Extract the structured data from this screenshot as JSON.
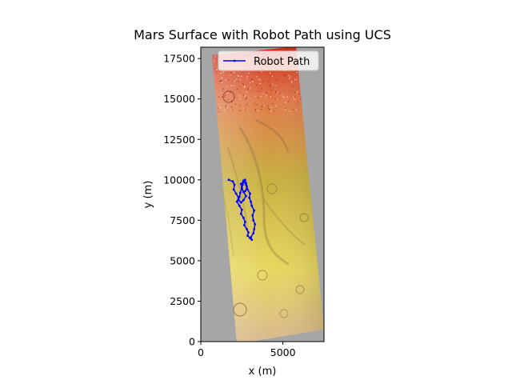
{
  "chart_data": {
    "type": "line",
    "title": "Mars Surface with Robot Path using UCS",
    "xlabel": "x (m)",
    "ylabel": "y (m)",
    "xlim": [
      0,
      7500
    ],
    "ylim": [
      0,
      18200
    ],
    "x_ticks": [
      0,
      5000
    ],
    "x_tick_labels": [
      "0",
      "5000"
    ],
    "y_ticks": [
      0,
      2500,
      5000,
      7500,
      10000,
      12500,
      15000,
      17500
    ],
    "y_tick_labels": [
      "0",
      "2500",
      "5000",
      "7500",
      "10000",
      "12500",
      "15000",
      "17500"
    ],
    "grid": false,
    "legend_position": "top-right",
    "background_color": "#a6a6a6",
    "terrain_colors": {
      "top": "#cc2a1a",
      "upper": "#e07a4a",
      "middle": "#c8b040",
      "lower": "#e8d860",
      "bottom": "#d8b890"
    },
    "series": [
      {
        "name": "Robot Path",
        "color": "#0000ff",
        "x": [
          1700,
          1950,
          2050,
          2000,
          2150,
          2300,
          2200,
          2350,
          2500,
          2450,
          2600,
          2700,
          2650,
          2800,
          2900,
          2850,
          3000,
          3100,
          3050,
          3200,
          3250,
          3300,
          3200,
          3150,
          3250,
          3100,
          3050,
          2950,
          3000,
          2850,
          2800,
          2750,
          2700,
          2600,
          2550,
          2500,
          2400,
          2350,
          2300,
          2450,
          2600,
          2750,
          2600,
          2500,
          2450,
          2600,
          2750,
          2800,
          2700
        ],
        "y": [
          10000,
          9900,
          9700,
          9400,
          9150,
          8900,
          8650,
          8400,
          8150,
          7900,
          7650,
          7400,
          7200,
          6950,
          6750,
          6550,
          6400,
          6300,
          6450,
          6700,
          6950,
          7250,
          7500,
          7800,
          8100,
          8400,
          8650,
          8900,
          9150,
          9400,
          9600,
          9800,
          10000,
          9950,
          9700,
          9450,
          9200,
          8950,
          8750,
          8600,
          8750,
          9000,
          9250,
          9500,
          9750,
          9900,
          9700,
          9450,
          9300
        ]
      }
    ]
  }
}
